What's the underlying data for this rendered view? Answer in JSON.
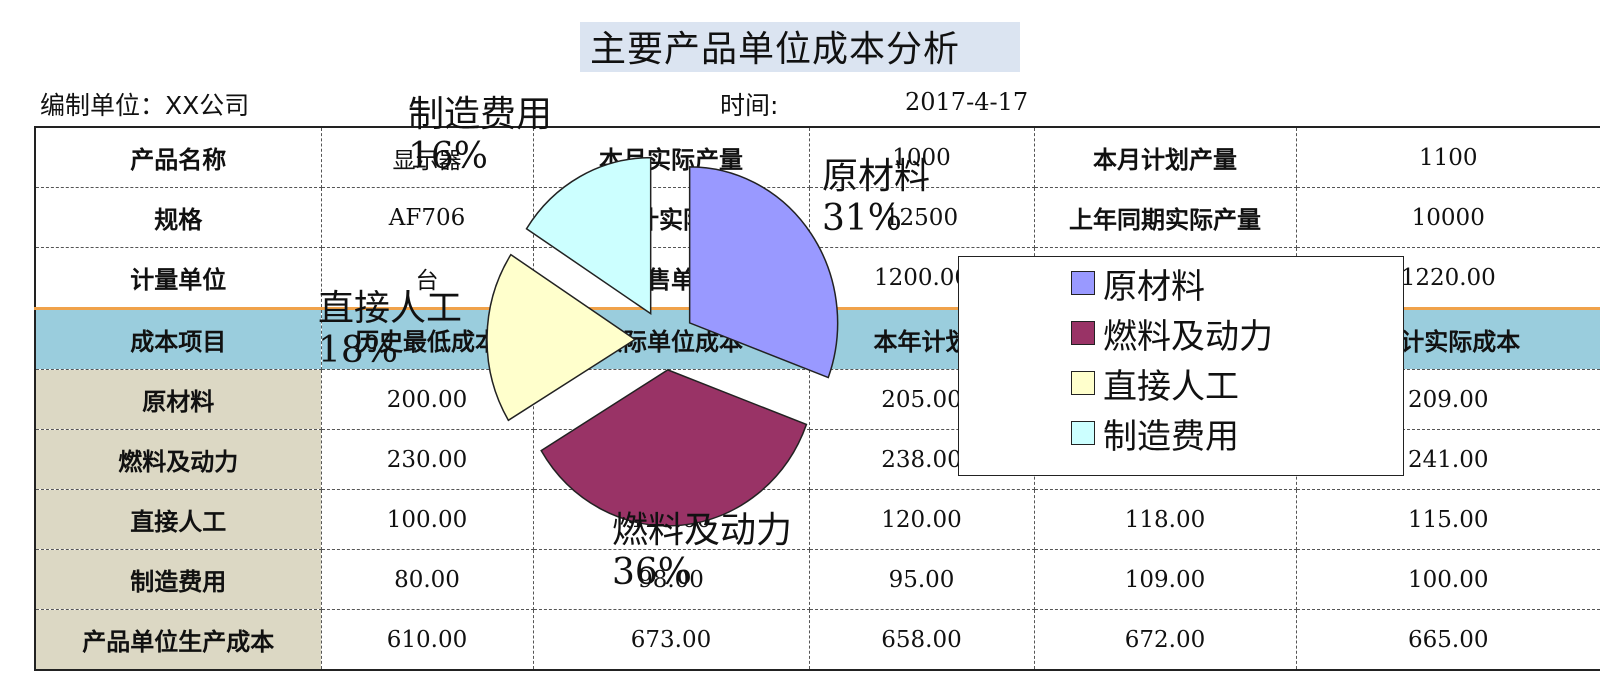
{
  "header": {
    "title": "主要产品单位成本分析",
    "unit_label": "编制单位：XX公司",
    "time_label": "时间:",
    "time_value": "2017-4-17"
  },
  "info_rows": [
    {
      "c1": "产品名称",
      "c2": "显示器",
      "c3": "本月实际产量",
      "c4": "1000",
      "c5": "本月计划产量",
      "c6": "1100"
    },
    {
      "c1": "规格",
      "c2": "AF706",
      "c3": "本年计实际产量",
      "c4": "12500",
      "c5": "上年同期实际产量",
      "c6": "10000"
    },
    {
      "c1": "计量单位",
      "c2": "台",
      "c3": "销售单价",
      "c4": "1200.00",
      "c5": "",
      "c6": "1220.00"
    }
  ],
  "cost_header": {
    "c1": "成本项目",
    "c2": "历史最低成本",
    "c3": "实际单位成本",
    "c4": "本年计划",
    "c5": "",
    "c6": "累计实际成本"
  },
  "cost_rows": [
    {
      "c1": "原材料",
      "c2": "200.00",
      "c3": "",
      "c4": "205.00",
      "c5": "",
      "c6": "209.00"
    },
    {
      "c1": "燃料及动力",
      "c2": "230.00",
      "c3": "",
      "c4": "238.00",
      "c5": "",
      "c6": "241.00"
    },
    {
      "c1": "直接人工",
      "c2": "100.00",
      "c3": "125.00",
      "c4": "120.00",
      "c5": "118.00",
      "c6": "115.00"
    },
    {
      "c1": "制造费用",
      "c2": "80.00",
      "c3": "98.00",
      "c4": "95.00",
      "c5": "109.00",
      "c6": "100.00"
    },
    {
      "c1": "产品单位生产成本",
      "c2": "610.00",
      "c3": "673.00",
      "c4": "658.00",
      "c5": "672.00",
      "c6": "665.00"
    }
  ],
  "chart_data": {
    "type": "pie",
    "categories": [
      "原材料",
      "燃料及动力",
      "直接人工",
      "制造费用"
    ],
    "values": [
      31,
      36,
      18,
      16
    ],
    "labels": [
      "31%",
      "36%",
      "18%",
      "16%"
    ],
    "colors": [
      "#9999ff",
      "#993366",
      "#ffffcc",
      "#ccffff"
    ],
    "exploded": true,
    "legend_position": "right"
  }
}
